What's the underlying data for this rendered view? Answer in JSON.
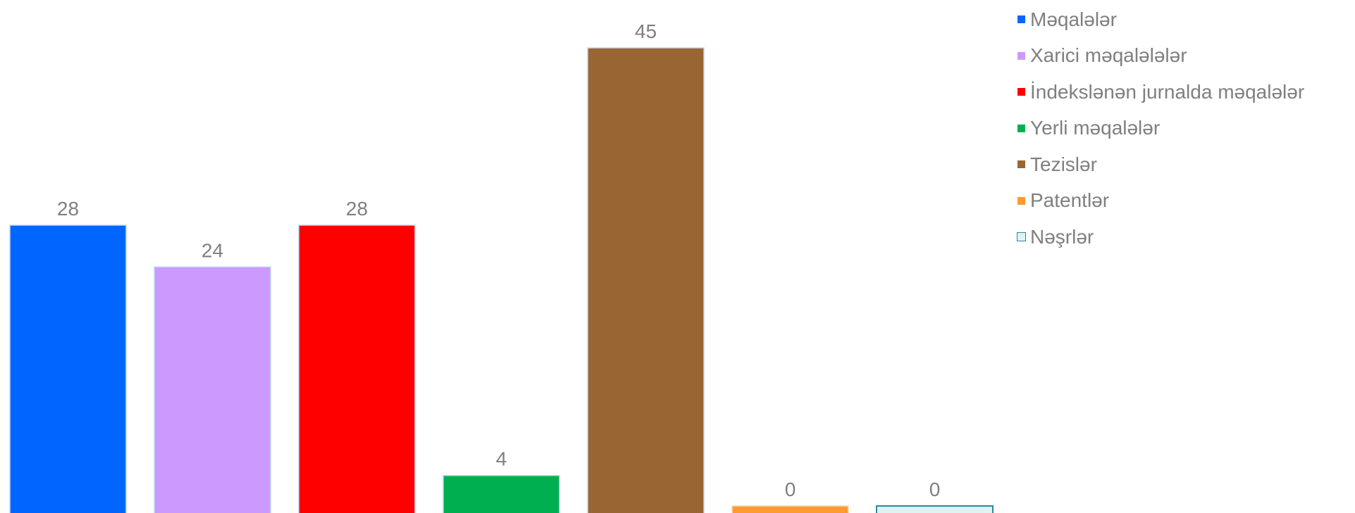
{
  "chart_data": {
    "type": "bar",
    "categories": [
      "Məqalələr",
      "Xarici məqalələlər",
      "İndekslənən jurnalda məqalələr",
      "Yerli məqalələr",
      "Tezislər",
      "Patentlər",
      "Nəşrlər"
    ],
    "values": [
      28,
      24,
      28,
      4,
      45,
      0,
      0
    ],
    "colors": [
      "#0066FF",
      "#CC99FF",
      "#FF0000",
      "#00B050",
      "#996633",
      "#FF9933",
      "#DDF3F5"
    ],
    "border_colors": [
      "#BFD9FF",
      "#BFD9FF",
      "#BFD9FF",
      "#BFD9FF",
      "#BFD9FF",
      "#FFD9B3",
      "#31859C"
    ],
    "data_labels": [
      "28",
      "24",
      "28",
      "4",
      "45",
      "0",
      "0"
    ],
    "title": "",
    "xlabel": "",
    "ylabel": "",
    "ylim": [
      0,
      45
    ],
    "grid": false,
    "axes_visible": false,
    "legend_position": "top-right",
    "legend": [
      {
        "label": "Məqalələr",
        "color": "#0066FF"
      },
      {
        "label": "Xarici məqalələlər",
        "color": "#CC99FF"
      },
      {
        "label": "İndekslənən jurnalda məqalələr",
        "color": "#FF0000"
      },
      {
        "label": "Yerli məqalələr",
        "color": "#00B050"
      },
      {
        "label": "Tezislər",
        "color": "#996633"
      },
      {
        "label": "Patentlər",
        "color": "#FF9933"
      },
      {
        "label": "Nəşrlər",
        "color": "#DDF3F5",
        "border": "#31859C"
      }
    ]
  }
}
